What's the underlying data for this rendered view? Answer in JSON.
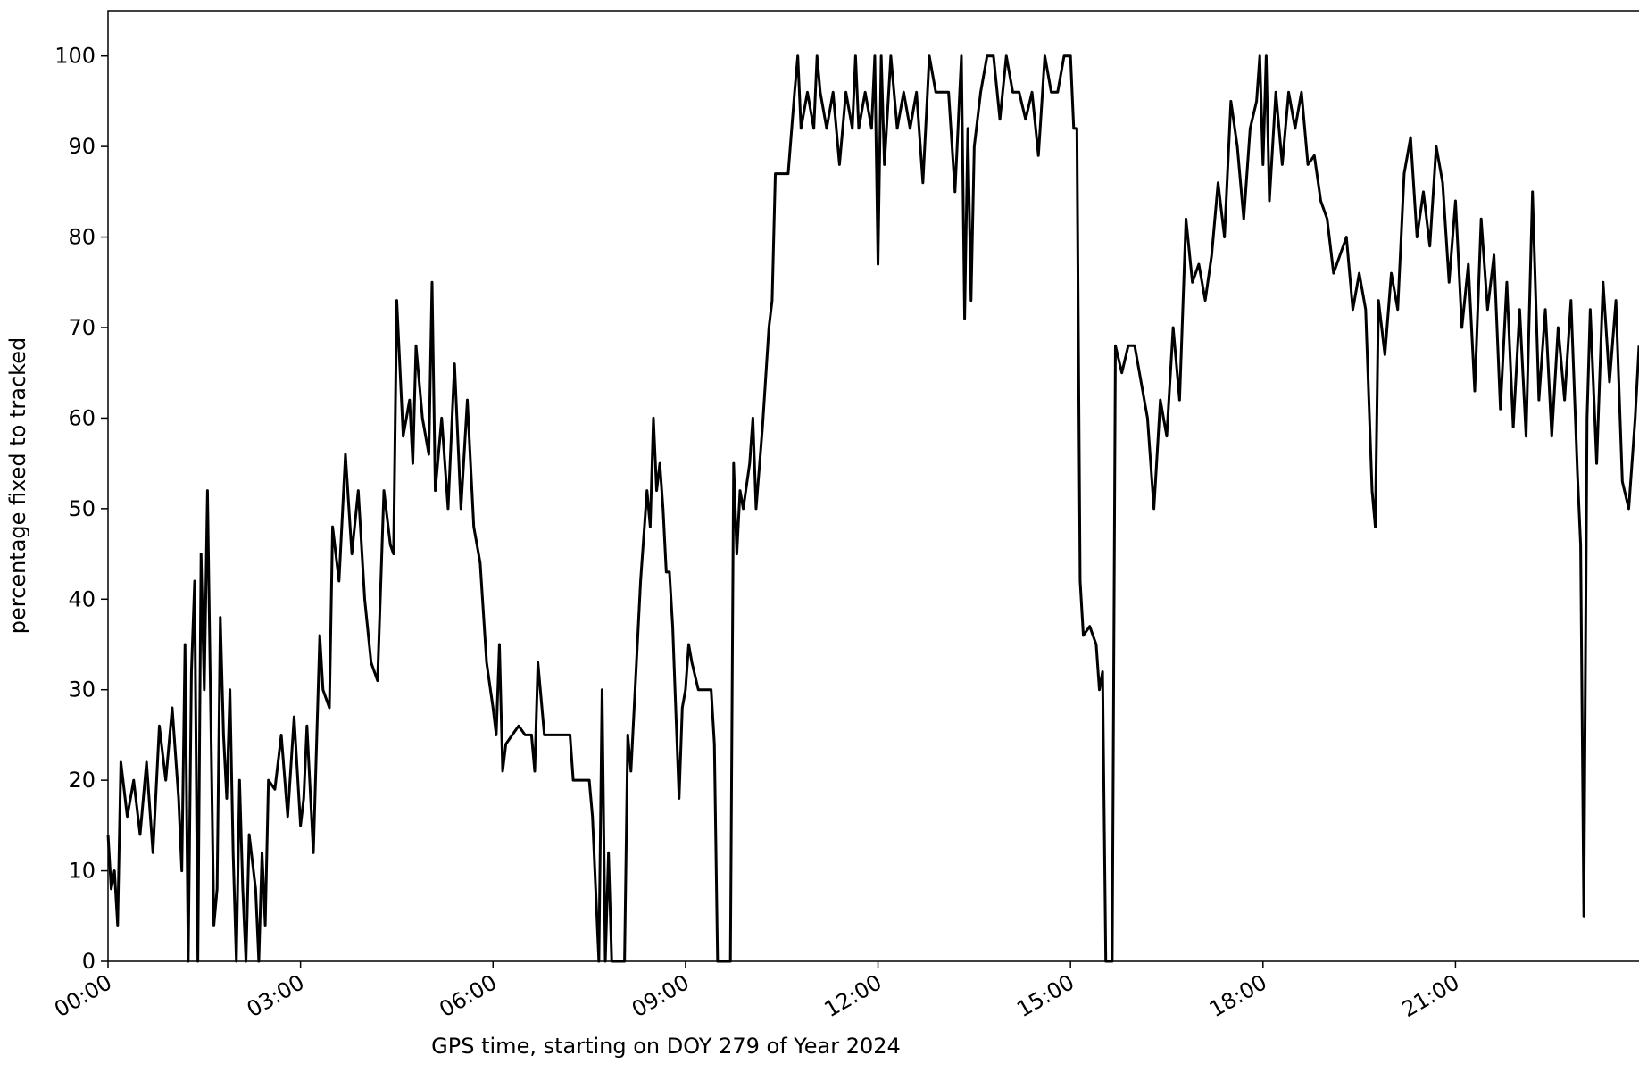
{
  "chart_data": {
    "type": "line",
    "xlabel": "GPS time, starting on DOY 279 of Year 2024",
    "ylabel": "percentage fixed to tracked",
    "xlim": [
      0,
      23.86
    ],
    "ylim": [
      0,
      105
    ],
    "xticks": [
      {
        "value": 0,
        "label": "00:00"
      },
      {
        "value": 3,
        "label": "03:00"
      },
      {
        "value": 6,
        "label": "06:00"
      },
      {
        "value": 9,
        "label": "09:00"
      },
      {
        "value": 12,
        "label": "12:00"
      },
      {
        "value": 15,
        "label": "15:00"
      },
      {
        "value": 18,
        "label": "18:00"
      },
      {
        "value": 21,
        "label": "21:00"
      }
    ],
    "yticks": [
      0,
      10,
      20,
      30,
      40,
      50,
      60,
      70,
      80,
      90,
      100
    ],
    "color": "#000000",
    "x": [
      0.0,
      0.05,
      0.1,
      0.15,
      0.2,
      0.3,
      0.4,
      0.5,
      0.6,
      0.7,
      0.8,
      0.9,
      1.0,
      1.1,
      1.15,
      1.2,
      1.25,
      1.3,
      1.35,
      1.4,
      1.45,
      1.5,
      1.55,
      1.6,
      1.65,
      1.7,
      1.75,
      1.8,
      1.85,
      1.9,
      1.95,
      2.0,
      2.05,
      2.1,
      2.15,
      2.2,
      2.3,
      2.35,
      2.4,
      2.45,
      2.5,
      2.6,
      2.7,
      2.8,
      2.9,
      3.0,
      3.05,
      3.1,
      3.2,
      3.3,
      3.35,
      3.45,
      3.5,
      3.6,
      3.7,
      3.8,
      3.9,
      4.0,
      4.1,
      4.2,
      4.3,
      4.4,
      4.45,
      4.5,
      4.6,
      4.7,
      4.75,
      4.8,
      4.9,
      5.0,
      5.05,
      5.1,
      5.2,
      5.3,
      5.4,
      5.5,
      5.6,
      5.7,
      5.75,
      5.8,
      5.9,
      6.0,
      6.05,
      6.1,
      6.15,
      6.2,
      6.3,
      6.4,
      6.5,
      6.6,
      6.65,
      6.7,
      6.8,
      6.9,
      7.0,
      7.2,
      7.25,
      7.5,
      7.55,
      7.6,
      7.65,
      7.7,
      7.75,
      7.8,
      7.85,
      7.9,
      8.0,
      8.05,
      8.1,
      8.15,
      8.2,
      8.3,
      8.4,
      8.45,
      8.5,
      8.55,
      8.6,
      8.65,
      8.7,
      8.75,
      8.8,
      8.9,
      8.95,
      9.0,
      9.05,
      9.1,
      9.2,
      9.3,
      9.4,
      9.45,
      9.5,
      9.6,
      9.7,
      9.75,
      9.8,
      9.85,
      9.9,
      10.0,
      10.05,
      10.1,
      10.2,
      10.3,
      10.35,
      10.4,
      10.5,
      10.6,
      10.7,
      10.75,
      10.8,
      10.9,
      11.0,
      11.05,
      11.1,
      11.2,
      11.3,
      11.4,
      11.5,
      11.6,
      11.65,
      11.7,
      11.8,
      11.9,
      11.95,
      12.0,
      12.05,
      12.1,
      12.2,
      12.3,
      12.4,
      12.5,
      12.6,
      12.7,
      12.8,
      12.9,
      13.0,
      13.1,
      13.2,
      13.3,
      13.35,
      13.4,
      13.45,
      13.5,
      13.6,
      13.7,
      13.8,
      13.9,
      14.0,
      14.1,
      14.2,
      14.3,
      14.4,
      14.5,
      14.6,
      14.7,
      14.8,
      14.9,
      15.0,
      15.05,
      15.1,
      15.15,
      15.2,
      15.3,
      15.4,
      15.45,
      15.5,
      15.55,
      15.65,
      15.7,
      15.8,
      15.9,
      16.0,
      16.1,
      16.2,
      16.3,
      16.4,
      16.5,
      16.6,
      16.7,
      16.8,
      16.9,
      17.0,
      17.1,
      17.2,
      17.3,
      17.4,
      17.5,
      17.6,
      17.7,
      17.8,
      17.9,
      17.95,
      18.0,
      18.05,
      18.1,
      18.2,
      18.3,
      18.4,
      18.5,
      18.6,
      18.7,
      18.8,
      18.9,
      19.0,
      19.1,
      19.2,
      19.3,
      19.4,
      19.5,
      19.6,
      19.7,
      19.75,
      19.8,
      19.9,
      20.0,
      20.1,
      20.2,
      20.3,
      20.4,
      20.5,
      20.6,
      20.7,
      20.8,
      20.9,
      21.0,
      21.1,
      21.2,
      21.3,
      21.4,
      21.5,
      21.6,
      21.7,
      21.8,
      21.9,
      22.0,
      22.1,
      22.2,
      22.3,
      22.4,
      22.5,
      22.6,
      22.7,
      22.8,
      22.9,
      22.95,
      23.0,
      23.05,
      23.1,
      23.2,
      23.3,
      23.4,
      23.5,
      23.6,
      23.7,
      23.8,
      23.86
    ],
    "values": [
      14,
      8,
      10,
      4,
      22,
      16,
      20,
      14,
      22,
      12,
      26,
      20,
      28,
      18,
      10,
      35,
      0,
      32,
      42,
      0,
      45,
      30,
      52,
      28,
      4,
      8,
      38,
      25,
      18,
      30,
      12,
      0,
      20,
      8,
      0,
      14,
      8,
      0,
      12,
      4,
      20,
      19,
      25,
      16,
      27,
      15,
      18,
      26,
      12,
      36,
      30,
      28,
      48,
      42,
      56,
      45,
      52,
      40,
      33,
      31,
      52,
      46,
      45,
      73,
      58,
      62,
      55,
      68,
      60,
      56,
      75,
      52,
      60,
      50,
      66,
      50,
      62,
      48,
      46,
      44,
      33,
      28,
      25,
      35,
      21,
      24,
      25,
      26,
      25,
      25,
      21,
      33,
      25,
      25,
      25,
      25,
      20,
      20,
      16,
      8,
      0,
      30,
      0,
      12,
      0,
      0,
      0,
      0,
      25,
      21,
      28,
      42,
      52,
      48,
      60,
      52,
      55,
      50,
      43,
      43,
      37,
      18,
      28,
      30,
      35,
      33,
      30,
      30,
      30,
      24,
      0,
      0,
      0,
      55,
      45,
      52,
      50,
      55,
      60,
      50,
      59,
      70,
      73,
      87,
      87,
      87,
      96,
      100,
      92,
      96,
      92,
      100,
      96,
      92,
      96,
      88,
      96,
      92,
      100,
      92,
      96,
      92,
      100,
      77,
      100,
      88,
      100,
      92,
      96,
      92,
      96,
      86,
      100,
      96,
      96,
      96,
      85,
      100,
      71,
      92,
      73,
      90,
      96,
      100,
      100,
      93,
      100,
      96,
      96,
      93,
      96,
      89,
      100,
      96,
      96,
      100,
      100,
      92,
      92,
      42,
      36,
      37,
      35,
      30,
      32,
      0,
      0,
      68,
      65,
      68,
      68,
      64,
      60,
      50,
      62,
      58,
      70,
      62,
      82,
      75,
      77,
      73,
      78,
      86,
      80,
      95,
      90,
      82,
      92,
      95,
      100,
      88,
      100,
      84,
      96,
      88,
      96,
      92,
      96,
      88,
      89,
      84,
      82,
      76,
      78,
      80,
      72,
      76,
      72,
      52,
      48,
      73,
      67,
      76,
      72,
      87,
      91,
      80,
      85,
      79,
      90,
      86,
      75,
      84,
      70,
      77,
      63,
      82,
      72,
      78,
      61,
      75,
      59,
      72,
      58,
      85,
      62,
      72,
      58,
      70,
      62,
      73,
      54,
      46,
      5,
      60,
      72,
      55,
      75,
      64,
      73,
      53,
      50,
      60,
      68
    ]
  }
}
